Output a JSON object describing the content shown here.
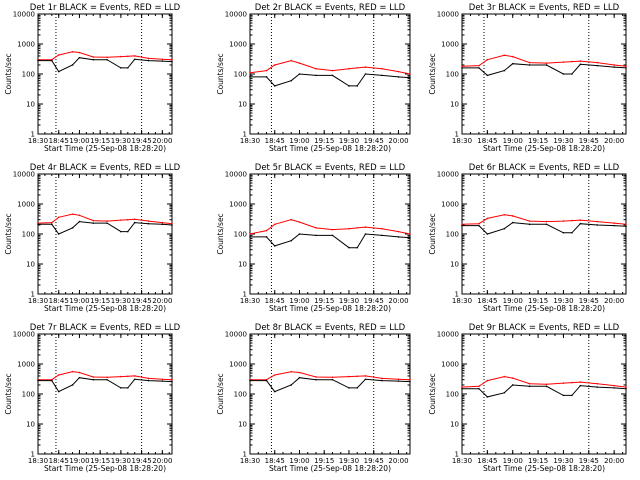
{
  "window": {
    "title": ""
  },
  "chart_data": [
    {
      "type": "line",
      "title": "Det 1r BLACK = Events, RED = LLD",
      "ylabel": "Counts/sec",
      "xlabel": "Start Time (25-Sep-08 18:28:20)",
      "x_tick_labels": [
        "18:30",
        "18:45",
        "19:00",
        "19:15",
        "19:30",
        "19:45",
        "20:00"
      ],
      "y_tick_labels": [
        "1",
        "10",
        "100",
        "1000",
        "10000"
      ],
      "y_scale": "log",
      "ylim": [
        1,
        10000
      ],
      "x_range": [
        "18:30",
        "20:07"
      ],
      "vlines": [
        "18:43",
        "19:45"
      ],
      "grid": false,
      "x": [
        "18:30",
        "18:40",
        "18:45",
        "18:55",
        "19:00",
        "19:10",
        "19:20",
        "19:30",
        "19:35",
        "19:40",
        "19:50",
        "20:00",
        "20:07"
      ],
      "series": [
        {
          "color": "#ff0000",
          "values": [
            300,
            300,
            430,
            550,
            520,
            370,
            360,
            380,
            390,
            400,
            330,
            310,
            300
          ]
        },
        {
          "color": "#000000",
          "values": [
            280,
            280,
            120,
            200,
            350,
            300,
            300,
            160,
            160,
            310,
            280,
            270,
            260
          ]
        }
      ]
    },
    {
      "type": "line",
      "title": "Det 2r BLACK = Events, RED = LLD",
      "ylabel": "Counts/sec",
      "xlabel": "Start Time (25-Sep-08 18:28:20)",
      "x_tick_labels": [
        "18:30",
        "18:45",
        "19:00",
        "19:15",
        "19:30",
        "19:45",
        "20:00"
      ],
      "y_tick_labels": [
        "1",
        "10",
        "100",
        "1000",
        "10000"
      ],
      "y_scale": "log",
      "ylim": [
        1,
        10000
      ],
      "x_range": [
        "18:30",
        "20:07"
      ],
      "vlines": [
        "18:43",
        "19:45"
      ],
      "grid": false,
      "x": [
        "18:30",
        "18:40",
        "18:45",
        "18:55",
        "19:00",
        "19:10",
        "19:20",
        "19:30",
        "19:35",
        "19:40",
        "19:50",
        "20:00",
        "20:07"
      ],
      "series": [
        {
          "color": "#ff0000",
          "values": [
            110,
            130,
            200,
            280,
            230,
            150,
            130,
            150,
            160,
            170,
            150,
            120,
            100
          ]
        },
        {
          "color": "#000000",
          "values": [
            80,
            80,
            40,
            60,
            100,
            90,
            90,
            40,
            40,
            100,
            90,
            80,
            75
          ]
        }
      ]
    },
    {
      "type": "line",
      "title": "Det 3r BLACK = Events, RED = LLD",
      "ylabel": "Counts/sec",
      "xlabel": "Start Time (25-Sep-08 18:28:20)",
      "x_tick_labels": [
        "18:30",
        "18:45",
        "19:00",
        "19:15",
        "19:30",
        "19:45",
        "20:00"
      ],
      "y_tick_labels": [
        "1",
        "10",
        "100",
        "1000",
        "10000"
      ],
      "y_scale": "log",
      "ylim": [
        1,
        10000
      ],
      "x_range": [
        "18:30",
        "20:07"
      ],
      "vlines": [
        "18:43",
        "19:45"
      ],
      "grid": false,
      "x": [
        "18:30",
        "18:40",
        "18:45",
        "18:55",
        "19:00",
        "19:10",
        "19:20",
        "19:30",
        "19:35",
        "19:40",
        "19:50",
        "20:00",
        "20:07"
      ],
      "series": [
        {
          "color": "#ff0000",
          "values": [
            180,
            190,
            300,
            420,
            380,
            240,
            230,
            250,
            260,
            270,
            240,
            200,
            180
          ]
        },
        {
          "color": "#000000",
          "values": [
            160,
            160,
            90,
            130,
            220,
            200,
            200,
            100,
            100,
            210,
            190,
            170,
            160
          ]
        }
      ]
    },
    {
      "type": "line",
      "title": "Det 4r BLACK = Events, RED = LLD",
      "ylabel": "Counts/sec",
      "xlabel": "Start Time (25-Sep-08 18:28:20)",
      "x_tick_labels": [
        "18:30",
        "18:45",
        "19:00",
        "19:15",
        "19:30",
        "19:45",
        "20:00"
      ],
      "y_tick_labels": [
        "1",
        "10",
        "100",
        "1000",
        "10000"
      ],
      "y_scale": "log",
      "ylim": [
        1,
        10000
      ],
      "x_range": [
        "18:30",
        "20:07"
      ],
      "vlines": [
        "18:43",
        "19:45"
      ],
      "grid": false,
      "x": [
        "18:30",
        "18:40",
        "18:45",
        "18:55",
        "19:00",
        "19:10",
        "19:20",
        "19:30",
        "19:35",
        "19:40",
        "19:50",
        "20:00",
        "20:07"
      ],
      "series": [
        {
          "color": "#ff0000",
          "values": [
            230,
            240,
            360,
            460,
            420,
            280,
            270,
            290,
            300,
            310,
            270,
            240,
            220
          ]
        },
        {
          "color": "#000000",
          "values": [
            210,
            210,
            100,
            160,
            260,
            230,
            230,
            120,
            120,
            240,
            220,
            210,
            200
          ]
        }
      ]
    },
    {
      "type": "line",
      "title": "Det 5r BLACK = Events, RED = LLD",
      "ylabel": "Counts/sec",
      "xlabel": "Start Time (25-Sep-08 18:28:20)",
      "x_tick_labels": [
        "18:30",
        "18:45",
        "19:00",
        "19:15",
        "19:30",
        "19:45",
        "20:00"
      ],
      "y_tick_labels": [
        "1",
        "10",
        "100",
        "1000",
        "10000"
      ],
      "y_scale": "log",
      "ylim": [
        1,
        10000
      ],
      "x_range": [
        "18:30",
        "20:07"
      ],
      "vlines": [
        "18:43",
        "19:45"
      ],
      "grid": false,
      "x": [
        "18:30",
        "18:40",
        "18:45",
        "18:55",
        "19:00",
        "19:10",
        "19:20",
        "19:30",
        "19:35",
        "19:40",
        "19:50",
        "20:00",
        "20:07"
      ],
      "series": [
        {
          "color": "#ff0000",
          "values": [
            100,
            130,
            210,
            300,
            250,
            160,
            140,
            150,
            160,
            170,
            150,
            120,
            100
          ]
        },
        {
          "color": "#000000",
          "values": [
            80,
            80,
            40,
            60,
            100,
            90,
            90,
            35,
            35,
            100,
            90,
            80,
            75
          ]
        }
      ]
    },
    {
      "type": "line",
      "title": "Det 6r BLACK = Events, RED = LLD",
      "ylabel": "Counts/sec",
      "xlabel": "Start Time (25-Sep-08 18:28:20)",
      "x_tick_labels": [
        "18:30",
        "18:45",
        "19:00",
        "19:15",
        "19:30",
        "19:45",
        "20:00"
      ],
      "y_tick_labels": [
        "1",
        "10",
        "100",
        "1000",
        "10000"
      ],
      "y_scale": "log",
      "ylim": [
        1,
        10000
      ],
      "x_range": [
        "18:30",
        "20:07"
      ],
      "vlines": [
        "18:43",
        "19:45"
      ],
      "grid": false,
      "x": [
        "18:30",
        "18:40",
        "18:45",
        "18:55",
        "19:00",
        "19:10",
        "19:20",
        "19:30",
        "19:35",
        "19:40",
        "19:50",
        "20:00",
        "20:07"
      ],
      "series": [
        {
          "color": "#ff0000",
          "values": [
            210,
            220,
            330,
            440,
            400,
            270,
            260,
            270,
            280,
            290,
            260,
            230,
            210
          ]
        },
        {
          "color": "#000000",
          "values": [
            190,
            190,
            100,
            150,
            240,
            210,
            210,
            110,
            110,
            220,
            200,
            190,
            180
          ]
        }
      ]
    },
    {
      "type": "line",
      "title": "Det 7r BLACK = Events, RED = LLD",
      "ylabel": "Counts/sec",
      "xlabel": "Start Time (25-Sep-08 18:28:20)",
      "x_tick_labels": [
        "18:30",
        "18:45",
        "19:00",
        "19:15",
        "19:30",
        "19:45",
        "20:00"
      ],
      "y_tick_labels": [
        "1",
        "10",
        "100",
        "1000",
        "10000"
      ],
      "y_scale": "log",
      "ylim": [
        1,
        10000
      ],
      "x_range": [
        "18:30",
        "20:07"
      ],
      "vlines": [
        "18:43",
        "19:45"
      ],
      "grid": false,
      "x": [
        "18:30",
        "18:40",
        "18:45",
        "18:55",
        "19:00",
        "19:10",
        "19:20",
        "19:30",
        "19:35",
        "19:40",
        "19:50",
        "20:00",
        "20:07"
      ],
      "series": [
        {
          "color": "#ff0000",
          "values": [
            300,
            300,
            430,
            560,
            520,
            370,
            360,
            380,
            390,
            400,
            330,
            310,
            300
          ]
        },
        {
          "color": "#000000",
          "values": [
            280,
            280,
            120,
            200,
            350,
            300,
            300,
            160,
            160,
            310,
            280,
            270,
            260
          ]
        }
      ]
    },
    {
      "type": "line",
      "title": "Det 8r BLACK = Events, RED = LLD",
      "ylabel": "Counts/sec",
      "xlabel": "Start Time (25-Sep-08 18:28:20)",
      "x_tick_labels": [
        "18:30",
        "18:45",
        "19:00",
        "19:15",
        "19:30",
        "19:45",
        "20:00"
      ],
      "y_tick_labels": [
        "1",
        "10",
        "100",
        "1000",
        "10000"
      ],
      "y_scale": "log",
      "ylim": [
        1,
        10000
      ],
      "x_range": [
        "18:30",
        "20:07"
      ],
      "vlines": [
        "18:43",
        "19:45"
      ],
      "grid": false,
      "x": [
        "18:30",
        "18:40",
        "18:45",
        "18:55",
        "19:00",
        "19:10",
        "19:20",
        "19:30",
        "19:35",
        "19:40",
        "19:50",
        "20:00",
        "20:07"
      ],
      "series": [
        {
          "color": "#ff0000",
          "values": [
            300,
            300,
            430,
            550,
            520,
            370,
            360,
            380,
            390,
            400,
            330,
            310,
            300
          ]
        },
        {
          "color": "#000000",
          "values": [
            280,
            280,
            120,
            200,
            350,
            300,
            300,
            160,
            160,
            310,
            280,
            270,
            260
          ]
        }
      ]
    },
    {
      "type": "line",
      "title": "Det 9r BLACK = Events, RED = LLD",
      "ylabel": "Counts/sec",
      "xlabel": "Start Time (25-Sep-08 18:28:20)",
      "x_tick_labels": [
        "18:30",
        "18:45",
        "19:00",
        "19:15",
        "19:30",
        "19:45",
        "20:00"
      ],
      "y_tick_labels": [
        "1",
        "10",
        "100",
        "1000",
        "10000"
      ],
      "y_scale": "log",
      "ylim": [
        1,
        10000
      ],
      "x_range": [
        "18:30",
        "20:07"
      ],
      "vlines": [
        "18:43",
        "19:45"
      ],
      "grid": false,
      "x": [
        "18:30",
        "18:40",
        "18:45",
        "18:55",
        "19:00",
        "19:10",
        "19:20",
        "19:30",
        "19:35",
        "19:40",
        "19:50",
        "20:00",
        "20:07"
      ],
      "series": [
        {
          "color": "#ff0000",
          "values": [
            170,
            180,
            280,
            380,
            340,
            220,
            210,
            230,
            240,
            250,
            220,
            190,
            170
          ]
        },
        {
          "color": "#000000",
          "values": [
            150,
            150,
            80,
            110,
            200,
            180,
            180,
            90,
            90,
            190,
            170,
            160,
            150
          ]
        }
      ]
    }
  ]
}
